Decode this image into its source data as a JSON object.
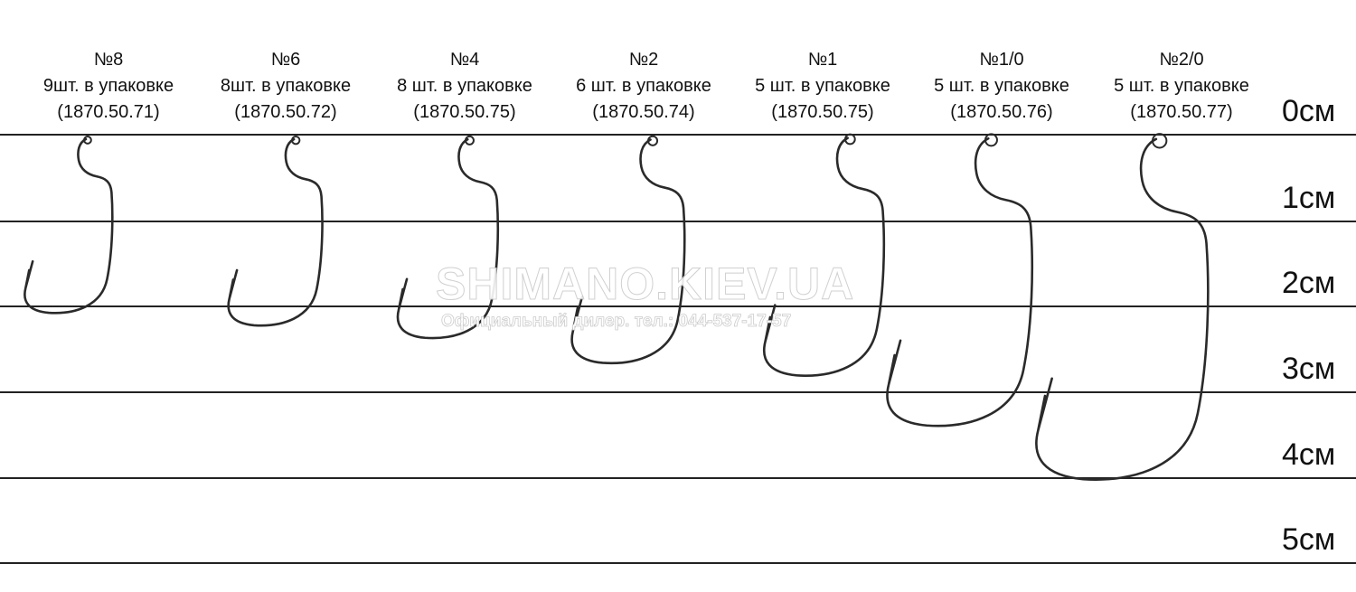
{
  "hooks": [
    {
      "size": "№8",
      "qty": "9шт. в упаковке",
      "code": "(1870.50.71)"
    },
    {
      "size": "№6",
      "qty": "8шт. в упаковке",
      "code": "(1870.50.72)"
    },
    {
      "size": "№4",
      "qty": "8 шт. в упаковке",
      "code": "(1870.50.75)"
    },
    {
      "size": "№2",
      "qty": "6 шт. в упаковке",
      "code": "(1870.50.74)"
    },
    {
      "size": "№1",
      "qty": "5 шт. в упаковке",
      "code": "(1870.50.75)"
    },
    {
      "size": "№1/0",
      "qty": "5 шт. в упаковке",
      "code": "(1870.50.76)"
    },
    {
      "size": "№2/0",
      "qty": "5 шт. в упаковке",
      "code": "(1870.50.77)"
    }
  ],
  "scale": [
    "0см",
    "1см",
    "2см",
    "3см",
    "4см",
    "5см"
  ],
  "watermark": {
    "site": "SHIMANO.KIEV.UA",
    "dealer": "Официальный дилер. тел.: 044-537-17-57"
  },
  "colors": {
    "hook": "#2a2a2a",
    "line": "#222222"
  }
}
